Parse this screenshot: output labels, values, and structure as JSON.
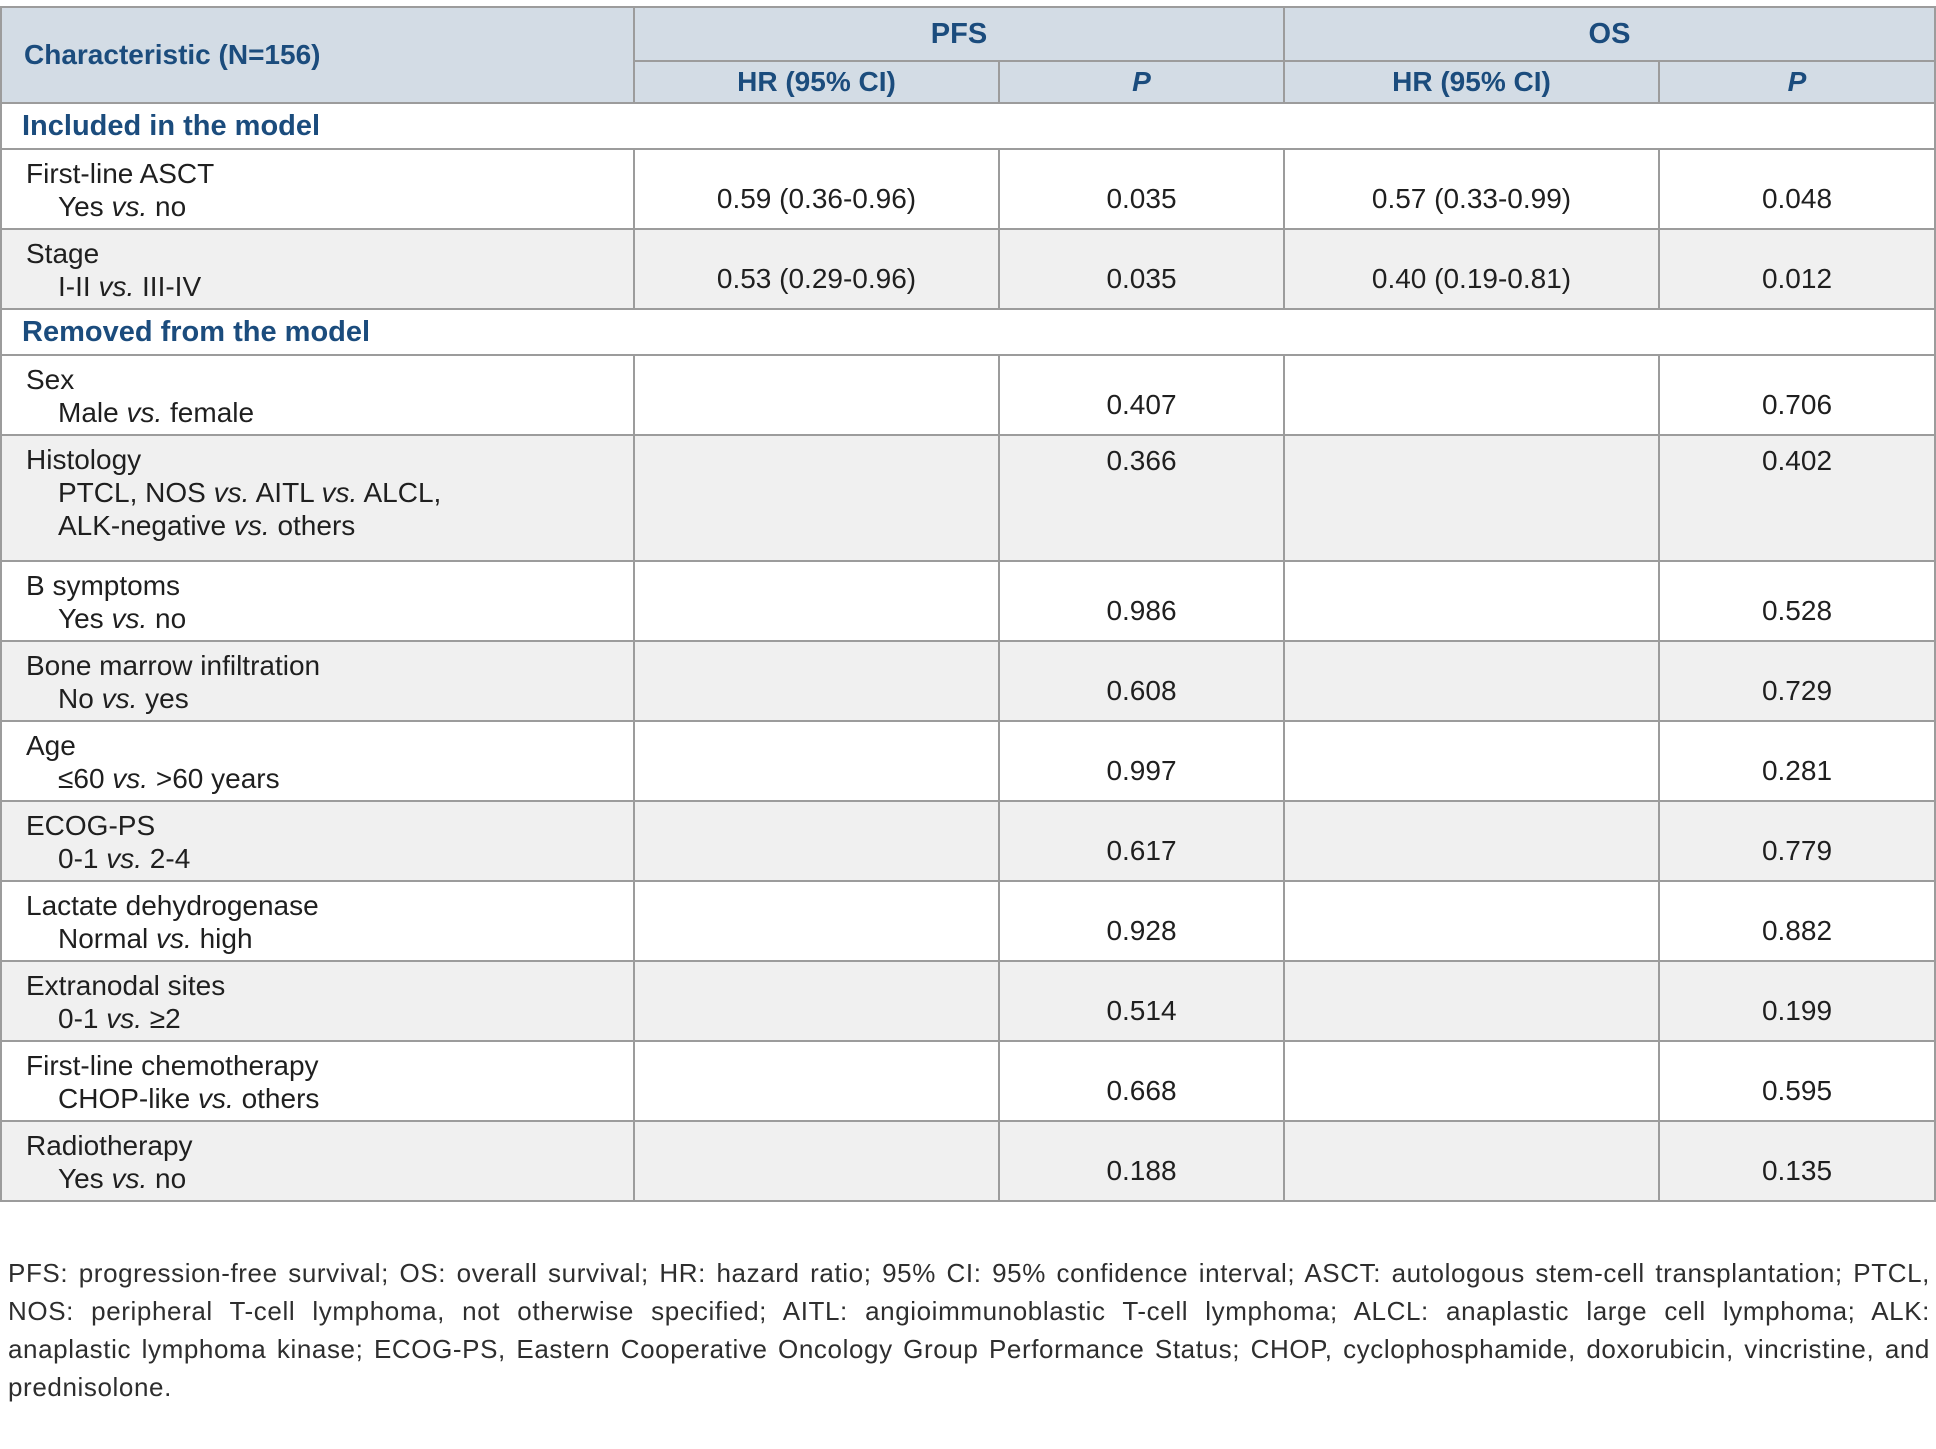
{
  "colors": {
    "header_bg": "#d3dce5",
    "navy": "#1b4c7d",
    "row_alt": "#f0f0f0",
    "border": "#9c9c9c"
  },
  "table": {
    "header": {
      "characteristic": "Characteristic (N=156)",
      "pfs": "PFS",
      "os": "OS",
      "hr": "HR (95% CI)",
      "p": "P"
    },
    "sections": [
      {
        "title": "Included in the model",
        "rows": [
          {
            "name": "First-line ASCT",
            "sub": [
              [
                {
                  "t": "Yes "
                },
                {
                  "t": "vs.",
                  "i": 1
                },
                {
                  "t": " no"
                }
              ]
            ],
            "pfs_hr": "0.59 (0.36-0.96)",
            "pfs_p": "0.035",
            "os_hr": "0.57 (0.33-0.99)",
            "os_p": "0.048"
          },
          {
            "name": "Stage",
            "sub": [
              [
                {
                  "t": "I-II "
                },
                {
                  "t": "vs.",
                  "i": 1
                },
                {
                  "t": " III-IV"
                }
              ]
            ],
            "pfs_hr": "0.53 (0.29-0.96)",
            "pfs_p": "0.035",
            "os_hr": "0.40 (0.19-0.81)",
            "os_p": "0.012"
          }
        ]
      },
      {
        "title": "Removed from the model",
        "rows": [
          {
            "name": "Sex",
            "sub": [
              [
                {
                  "t": "Male "
                },
                {
                  "t": "vs.",
                  "i": 1
                },
                {
                  "t": " female"
                }
              ]
            ],
            "pfs_p": "0.407",
            "os_p": "0.706"
          },
          {
            "name": "Histology",
            "sub": [
              [
                {
                  "t": "PTCL, NOS "
                },
                {
                  "t": "vs.",
                  "i": 1
                },
                {
                  "t": " AITL "
                },
                {
                  "t": "vs.",
                  "i": 1
                },
                {
                  "t": " ALCL,"
                }
              ],
              [
                {
                  "t": "ALK-negative "
                },
                {
                  "t": "vs.",
                  "i": 1
                },
                {
                  "t": " others"
                }
              ]
            ],
            "pfs_p": "0.366",
            "os_p": "0.402"
          },
          {
            "name": "B symptoms",
            "sub": [
              [
                {
                  "t": "Yes "
                },
                {
                  "t": "vs.",
                  "i": 1
                },
                {
                  "t": " no"
                }
              ]
            ],
            "pfs_p": "0.986",
            "os_p": "0.528"
          },
          {
            "name": "Bone marrow infiltration",
            "sub": [
              [
                {
                  "t": "No "
                },
                {
                  "t": "vs.",
                  "i": 1
                },
                {
                  "t": " yes"
                }
              ]
            ],
            "pfs_p": "0.608",
            "os_p": "0.729"
          },
          {
            "name": "Age",
            "sub": [
              [
                {
                  "t": "≤60 "
                },
                {
                  "t": "vs.",
                  "i": 1
                },
                {
                  "t": " >60 years"
                }
              ]
            ],
            "pfs_p": "0.997",
            "os_p": "0.281"
          },
          {
            "name": "ECOG-PS",
            "sub": [
              [
                {
                  "t": "0-1 "
                },
                {
                  "t": "vs.",
                  "i": 1
                },
                {
                  "t": " 2-4"
                }
              ]
            ],
            "pfs_p": "0.617",
            "os_p": "0.779"
          },
          {
            "name": "Lactate dehydrogenase",
            "sub": [
              [
                {
                  "t": "Normal "
                },
                {
                  "t": "vs.",
                  "i": 1
                },
                {
                  "t": " high"
                }
              ]
            ],
            "pfs_p": "0.928",
            "os_p": "0.882"
          },
          {
            "name": "Extranodal sites",
            "sub": [
              [
                {
                  "t": "0-1 "
                },
                {
                  "t": "vs.",
                  "i": 1
                },
                {
                  "t": " ≥2"
                }
              ]
            ],
            "pfs_p": "0.514",
            "os_p": "0.199"
          },
          {
            "name": "First-line chemotherapy",
            "sub": [
              [
                {
                  "t": "CHOP-like "
                },
                {
                  "t": "vs.",
                  "i": 1
                },
                {
                  "t": " others"
                }
              ]
            ],
            "pfs_p": "0.668",
            "os_p": "0.595"
          },
          {
            "name": "Radiotherapy",
            "sub": [
              [
                {
                  "t": "Yes "
                },
                {
                  "t": "vs.",
                  "i": 1
                },
                {
                  "t": " no"
                }
              ]
            ],
            "pfs_p": "0.188",
            "os_p": "0.135"
          }
        ]
      }
    ]
  },
  "footnote": "PFS: progression-free survival; OS: overall survival; HR: hazard ratio; 95% CI: 95% confidence interval; ASCT: autologous stem-cell transplantation; PTCL, NOS: peripheral T-cell lymphoma, not otherwise specified; AITL: angioimmunoblastic T-cell lymphoma; ALCL: anaplastic large cell lymphoma; ALK: anaplastic lymphoma kinase; ECOG-PS, Eastern Cooperative Oncology Group Performance Status; CHOP, cyclophosphamide, doxorubicin, vincristine, and prednisolone."
}
